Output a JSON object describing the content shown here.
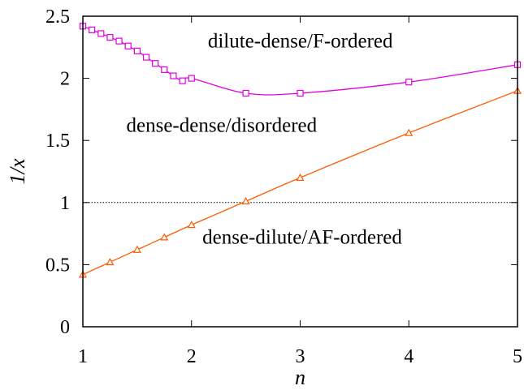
{
  "chart_data": {
    "type": "line",
    "xlabel": "n",
    "ylabel": "1/x",
    "xlim": [
      1,
      5
    ],
    "ylim": [
      0,
      2.5
    ],
    "x_ticks": [
      "1",
      "2",
      "3",
      "4",
      "5"
    ],
    "y_ticks": [
      "0",
      "0.5",
      "1",
      "1.5",
      "2",
      "2.5"
    ],
    "x_tick_values": [
      1,
      2,
      3,
      4,
      5
    ],
    "y_tick_values": [
      0,
      0.5,
      1,
      1.5,
      2,
      2.5
    ],
    "grid": false,
    "reference_line": {
      "y": 1,
      "style": "dotted"
    },
    "series": [
      {
        "color": "#e000e0",
        "marker": "square",
        "x": [
          1,
          1.0833,
          1.1667,
          1.25,
          1.3333,
          1.4167,
          1.5,
          1.5833,
          1.6667,
          1.75,
          1.8333,
          1.9167,
          2,
          2.5,
          3,
          4,
          5
        ],
        "y": [
          2.42,
          2.39,
          2.36,
          2.33,
          2.3,
          2.26,
          2.22,
          2.17,
          2.12,
          2.07,
          2.02,
          1.98,
          2.0,
          1.88,
          1.88,
          1.97,
          2.11
        ],
        "marker_x": [
          1,
          1.0833,
          1.1667,
          1.25,
          1.3333,
          1.4167,
          1.5,
          1.5833,
          1.6667,
          1.75,
          1.8333,
          1.9167,
          2,
          2.5,
          3,
          4,
          5
        ]
      },
      {
        "color": "#ff5a00",
        "marker": "triangle",
        "x": [
          1,
          1.25,
          1.5,
          1.75,
          2,
          2.5,
          3,
          4,
          5
        ],
        "y": [
          0.42,
          0.52,
          0.62,
          0.72,
          0.82,
          1.01,
          1.2,
          1.56,
          1.9
        ]
      }
    ],
    "annotations": [
      {
        "text": "dilute-dense/F-ordered",
        "x": 2.15,
        "y": 2.25
      },
      {
        "text": "dense-dense/disordered",
        "x": 1.4,
        "y": 1.57
      },
      {
        "text": "dense-dilute/AF-ordered",
        "x": 2.1,
        "y": 0.67
      }
    ]
  }
}
